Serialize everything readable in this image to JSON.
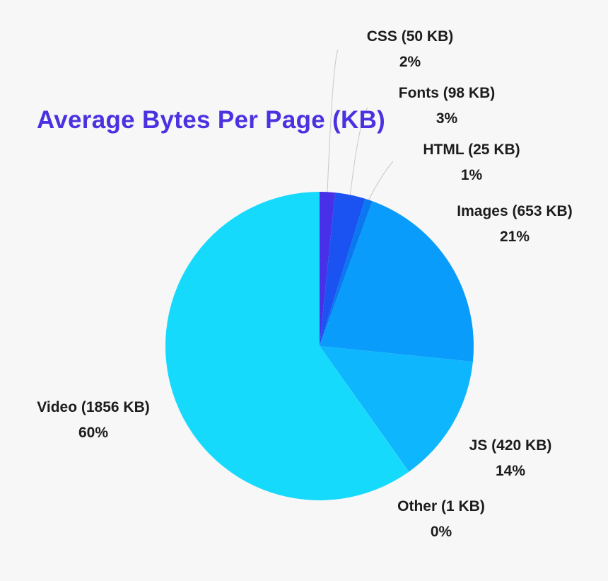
{
  "chart_data": {
    "type": "pie",
    "title": "Average Bytes Per Page (KB)",
    "slices": [
      {
        "category": "CSS",
        "value": 50,
        "percent_label": "2%",
        "color": "#4830e8",
        "label": "CSS (50 KB)"
      },
      {
        "category": "Fonts",
        "value": 98,
        "percent_label": "3%",
        "color": "#1b52f2",
        "label": "Fonts (98 KB)"
      },
      {
        "category": "HTML",
        "value": 25,
        "percent_label": "1%",
        "color": "#0a78f0",
        "label": "HTML (25 KB)"
      },
      {
        "category": "Images",
        "value": 653,
        "percent_label": "21%",
        "color": "#0a9cfb",
        "label": "Images (653 KB)"
      },
      {
        "category": "JS",
        "value": 420,
        "percent_label": "14%",
        "color": "#0eb7fd",
        "label": "JS (420 KB)"
      },
      {
        "category": "Other",
        "value": 1,
        "percent_label": "0%",
        "color": "#12c6fd",
        "label": "Other (1 KB)"
      },
      {
        "category": "Video",
        "value": 1856,
        "percent_label": "60%",
        "color": "#16dafc",
        "label": "Video (1856 KB)"
      }
    ],
    "start_angle": "top",
    "direction": "clockwise",
    "legend": "none"
  }
}
